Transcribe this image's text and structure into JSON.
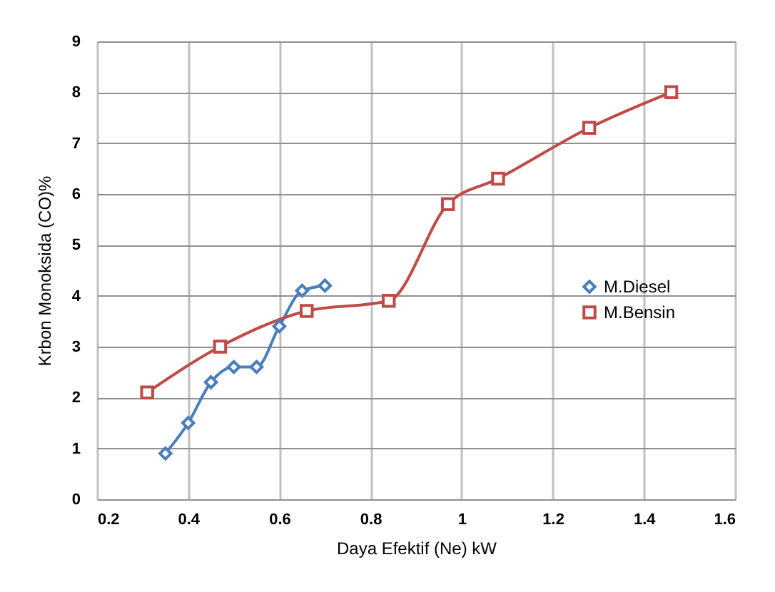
{
  "chart_data": {
    "type": "line",
    "xlabel": "Daya Efektif (Ne) kW",
    "ylabel": "Krbon Monoksida (CO)%",
    "series": [
      {
        "name": "M.Diesel",
        "color": "#4a7ebb",
        "marker": "diamond",
        "x": [
          0.35,
          0.4,
          0.45,
          0.5,
          0.55,
          0.6,
          0.65,
          0.7
        ],
        "values": [
          0.9,
          1.5,
          2.3,
          2.6,
          2.6,
          3.4,
          4.1,
          4.2
        ]
      },
      {
        "name": "M.Bensin",
        "color": "#be4b48",
        "marker": "square",
        "x": [
          0.31,
          0.47,
          0.66,
          0.84,
          0.97,
          1.08,
          1.28,
          1.46
        ],
        "values": [
          2.1,
          3.0,
          3.7,
          3.9,
          5.8,
          6.3,
          7.3,
          8.0
        ]
      }
    ],
    "xlim": [
      0.2,
      1.6
    ],
    "xticks": [
      0.2,
      0.4,
      0.6,
      0.8,
      1,
      1.2,
      1.4,
      1.6
    ],
    "ylim": [
      0,
      9
    ],
    "yticks": [
      0,
      1,
      2,
      3,
      4,
      5,
      6,
      7,
      8,
      9
    ],
    "grid": true,
    "legend": "right",
    "line_style": "solid"
  }
}
